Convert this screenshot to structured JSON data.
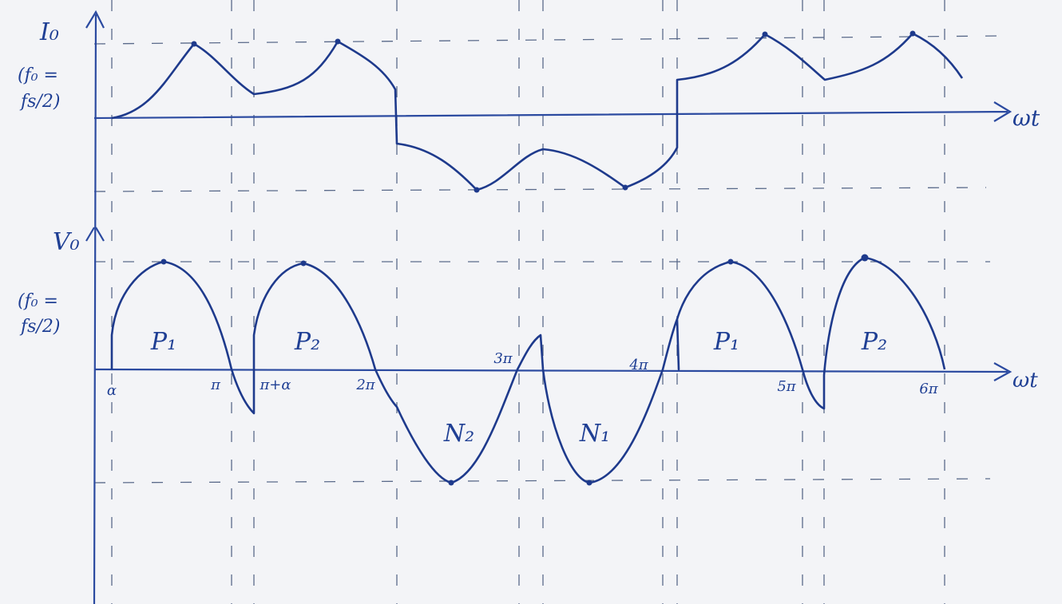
{
  "top_graph": {
    "y_label": "I₀",
    "y_note": [
      "(f₀ =",
      "fs/2)"
    ],
    "x_label": "ωt"
  },
  "bottom_graph": {
    "y_label": "V₀",
    "y_note": [
      "(f₀ =",
      "fs/2)"
    ],
    "x_label": "ωt",
    "ticks": [
      "α",
      "π",
      "π+α",
      "2π",
      "3π",
      "4π",
      "5π",
      "6π"
    ],
    "regions": [
      "P₁",
      "P₂",
      "N₂",
      "N₁",
      "P₁",
      "P₂"
    ]
  }
}
